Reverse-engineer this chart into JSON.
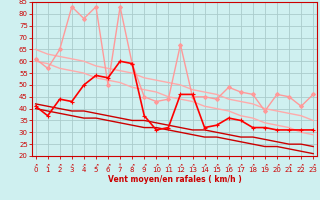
{
  "x": [
    0,
    1,
    2,
    3,
    4,
    5,
    6,
    7,
    8,
    9,
    10,
    11,
    12,
    13,
    14,
    15,
    16,
    17,
    18,
    19,
    20,
    21,
    22,
    23
  ],
  "series": [
    {
      "name": "rafales_max_line",
      "color": "#ff9999",
      "lw": 1.0,
      "marker": "D",
      "ms": 2.0,
      "y": [
        61,
        57,
        65,
        83,
        78,
        83,
        50,
        83,
        59,
        45,
        43,
        44,
        67,
        45,
        45,
        44,
        49,
        47,
        46,
        39,
        46,
        45,
        41,
        46
      ]
    },
    {
      "name": "rafales_trend_upper",
      "color": "#ffaaaa",
      "lw": 1.0,
      "marker": null,
      "ms": 0,
      "y": [
        65,
        63,
        62,
        61,
        60,
        58,
        57,
        56,
        55,
        53,
        52,
        51,
        50,
        48,
        47,
        46,
        44,
        43,
        42,
        40,
        39,
        38,
        37,
        35
      ]
    },
    {
      "name": "rafales_trend_lower",
      "color": "#ffaaaa",
      "lw": 1.0,
      "marker": null,
      "ms": 0,
      "y": [
        60,
        59,
        57,
        56,
        55,
        53,
        52,
        51,
        49,
        48,
        47,
        45,
        44,
        43,
        41,
        40,
        39,
        37,
        36,
        34,
        33,
        32,
        30,
        29
      ]
    },
    {
      "name": "vent_moyen_line",
      "color": "#ff0000",
      "lw": 1.2,
      "marker": "+",
      "ms": 3.5,
      "y": [
        41,
        37,
        44,
        43,
        50,
        54,
        53,
        60,
        59,
        37,
        31,
        32,
        46,
        46,
        32,
        33,
        36,
        35,
        32,
        32,
        31,
        31,
        31,
        31
      ]
    },
    {
      "name": "vent_trend_upper",
      "color": "#cc0000",
      "lw": 1.0,
      "marker": null,
      "ms": 0,
      "y": [
        42,
        41,
        40,
        39,
        39,
        38,
        37,
        36,
        35,
        35,
        34,
        33,
        32,
        31,
        31,
        30,
        29,
        28,
        28,
        27,
        26,
        25,
        25,
        24
      ]
    },
    {
      "name": "vent_trend_lower",
      "color": "#cc0000",
      "lw": 1.0,
      "marker": null,
      "ms": 0,
      "y": [
        40,
        39,
        38,
        37,
        36,
        36,
        35,
        34,
        33,
        32,
        32,
        31,
        30,
        29,
        28,
        28,
        27,
        26,
        25,
        24,
        24,
        23,
        22,
        21
      ]
    }
  ],
  "ylim": [
    20,
    85
  ],
  "xlim": [
    -0.3,
    23.3
  ],
  "yticks": [
    20,
    25,
    30,
    35,
    40,
    45,
    50,
    55,
    60,
    65,
    70,
    75,
    80,
    85
  ],
  "xticks": [
    0,
    1,
    2,
    3,
    4,
    5,
    6,
    7,
    8,
    9,
    10,
    11,
    12,
    13,
    14,
    15,
    16,
    17,
    18,
    19,
    20,
    21,
    22,
    23
  ],
  "xlabel": "Vent moyen/en rafales ( km/h )",
  "bg_color": "#cff0f0",
  "grid_color": "#aacccc",
  "tick_color": "#cc0000",
  "label_color": "#cc0000",
  "arrow_chars": [
    "↗",
    "↗",
    "↗",
    "↗",
    "↗",
    "↗",
    "↗",
    "↑",
    "↗",
    "↗",
    "↗",
    "↗",
    "↗",
    "↗",
    "↗",
    "↗",
    "↗",
    "↗",
    "↗",
    "↗",
    "↗",
    "↗",
    "↗",
    "↗"
  ]
}
